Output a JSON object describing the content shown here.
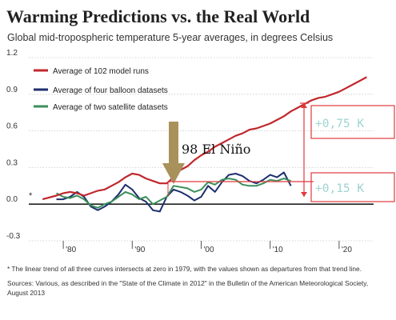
{
  "title": "Warming Predictions vs. the Real World",
  "subtitle": "Global mid-tropospheric temperature 5-year averages, in degrees Celsius",
  "footnote": "* The linear trend of all three curves intersects at zero in 1979, with the values shown as departures from that trend line.",
  "sources": "Sources: Various, as described in the \"State of the Climate in 2012\" in the Bulletin of the American Meteorological Society, August 2013",
  "annotations": {
    "el_nino": "98 El Niño",
    "delta_model": "+0,75 K",
    "delta_obs": "+0,15 K",
    "asterisk": "*"
  },
  "colors": {
    "model": "#c0282d",
    "balloon": "#1e2f6e",
    "satellite": "#3a8f5a",
    "arrow": "#a9915b",
    "annotation_red": "#e0383f",
    "box_text": "#9fd3d3"
  },
  "chart_data": {
    "type": "line",
    "title": "Warming Predictions vs. the Real World",
    "subtitle": "Global mid-tropospheric temperature 5-year averages, in degrees Celsius",
    "xlabel": "",
    "ylabel": "",
    "xlim": [
      1975,
      2025
    ],
    "ylim": [
      -0.3,
      1.2
    ],
    "x_ticks": [
      1980,
      1990,
      2000,
      2010,
      2020
    ],
    "x_tick_labels": [
      "'80",
      "'90",
      "'00",
      "'10",
      "'20"
    ],
    "y_ticks": [
      -0.3,
      0.0,
      0.3,
      0.6,
      0.9,
      1.2
    ],
    "y_tick_labels": [
      "-0.3",
      "0.0",
      "0.3",
      "0.6",
      "0.9",
      "1.2"
    ],
    "grid": "horizontal",
    "legend_position": "top-left",
    "series": [
      {
        "name": "Average of 102 model runs",
        "color": "#c0282d",
        "x": [
          1977,
          1979,
          1980,
          1981,
          1982,
          1983,
          1984,
          1985,
          1986,
          1987,
          1988,
          1989,
          1990,
          1991,
          1992,
          1993,
          1994,
          1995,
          1996,
          1997,
          1998,
          1999,
          2000,
          2001,
          2002,
          2003,
          2004,
          2005,
          2006,
          2007,
          2008,
          2009,
          2010,
          2011,
          2012,
          2013,
          2014,
          2015,
          2016,
          2017,
          2018,
          2019,
          2020,
          2021,
          2022,
          2023,
          2024
        ],
        "y": [
          0.04,
          0.07,
          0.09,
          0.1,
          0.09,
          0.07,
          0.09,
          0.11,
          0.12,
          0.15,
          0.18,
          0.22,
          0.25,
          0.24,
          0.21,
          0.19,
          0.17,
          0.17,
          0.22,
          0.28,
          0.31,
          0.36,
          0.4,
          0.43,
          0.47,
          0.5,
          0.53,
          0.56,
          0.58,
          0.61,
          0.62,
          0.64,
          0.66,
          0.69,
          0.72,
          0.76,
          0.79,
          0.82,
          0.85,
          0.87,
          0.88,
          0.9,
          0.92,
          0.95,
          0.98,
          1.01,
          1.04
        ]
      },
      {
        "name": "Average of four balloon datasets",
        "color": "#1e2f6e",
        "x": [
          1979,
          1980,
          1981,
          1982,
          1983,
          1984,
          1985,
          1986,
          1987,
          1988,
          1989,
          1990,
          1991,
          1992,
          1993,
          1994,
          1995,
          1996,
          1997,
          1998,
          1999,
          2000,
          2001,
          2002,
          2003,
          2004,
          2005,
          2006,
          2007,
          2008,
          2009,
          2010,
          2011,
          2012,
          2013
        ],
        "y": [
          0.04,
          0.04,
          0.06,
          0.1,
          0.06,
          -0.02,
          -0.05,
          -0.02,
          0.02,
          0.08,
          0.16,
          0.12,
          0.05,
          0.02,
          -0.05,
          -0.06,
          0.06,
          0.12,
          0.1,
          0.07,
          0.03,
          0.06,
          0.15,
          0.1,
          0.18,
          0.24,
          0.25,
          0.23,
          0.19,
          0.17,
          0.2,
          0.24,
          0.22,
          0.26,
          0.15
        ]
      },
      {
        "name": "Average of two satellite datasets",
        "color": "#3a8f5a",
        "x": [
          1979,
          1980,
          1981,
          1982,
          1983,
          1984,
          1985,
          1986,
          1987,
          1988,
          1989,
          1990,
          1991,
          1992,
          1993,
          1994,
          1995,
          1996,
          1997,
          1998,
          1999,
          2000,
          2001,
          2002,
          2003,
          2004,
          2005,
          2006,
          2007,
          2008,
          2009,
          2010,
          2011,
          2012,
          2013
        ],
        "y": [
          0.09,
          0.06,
          0.05,
          0.07,
          0.04,
          -0.01,
          -0.03,
          0.0,
          0.02,
          0.06,
          0.1,
          0.08,
          0.04,
          0.06,
          0.0,
          0.03,
          0.06,
          0.15,
          0.14,
          0.13,
          0.1,
          0.12,
          0.18,
          0.16,
          0.2,
          0.21,
          0.2,
          0.16,
          0.15,
          0.15,
          0.17,
          0.2,
          0.19,
          0.21,
          0.19
        ]
      }
    ]
  }
}
